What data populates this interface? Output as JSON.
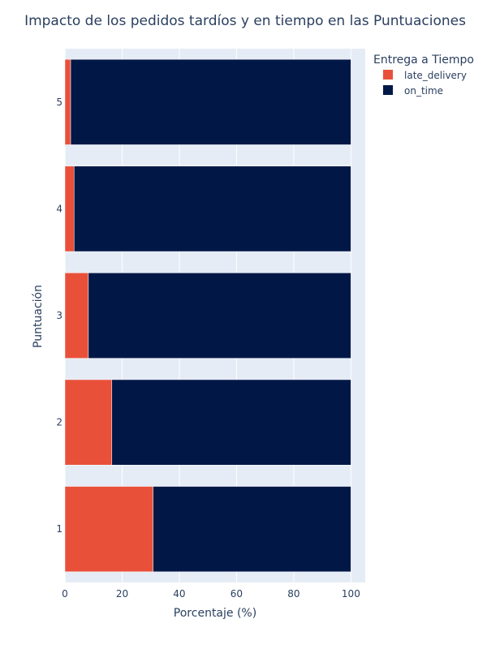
{
  "chart_data": {
    "type": "bar",
    "orientation": "horizontal",
    "stacked": true,
    "title": "Impacto de los pedidos tardíos y en tiempo en las Puntuaciones",
    "xlabel": "Porcentaje (%)",
    "ylabel": "Puntuación",
    "xlim": [
      0,
      105
    ],
    "xticks": [
      0,
      20,
      40,
      60,
      80,
      100
    ],
    "categories": [
      "1",
      "2",
      "3",
      "4",
      "5"
    ],
    "series": [
      {
        "name": "late_delivery",
        "color": "#e8503a",
        "values": [
          30.8,
          16.4,
          8.2,
          3.2,
          2.0
        ]
      },
      {
        "name": "on_time",
        "color": "#011847",
        "values": [
          69.2,
          83.6,
          91.8,
          96.8,
          98.0
        ]
      }
    ],
    "legend": {
      "title": "Entrega a Tiempo",
      "placement": "top-right"
    },
    "grid": true,
    "plot_background": "#e5ecf6"
  }
}
